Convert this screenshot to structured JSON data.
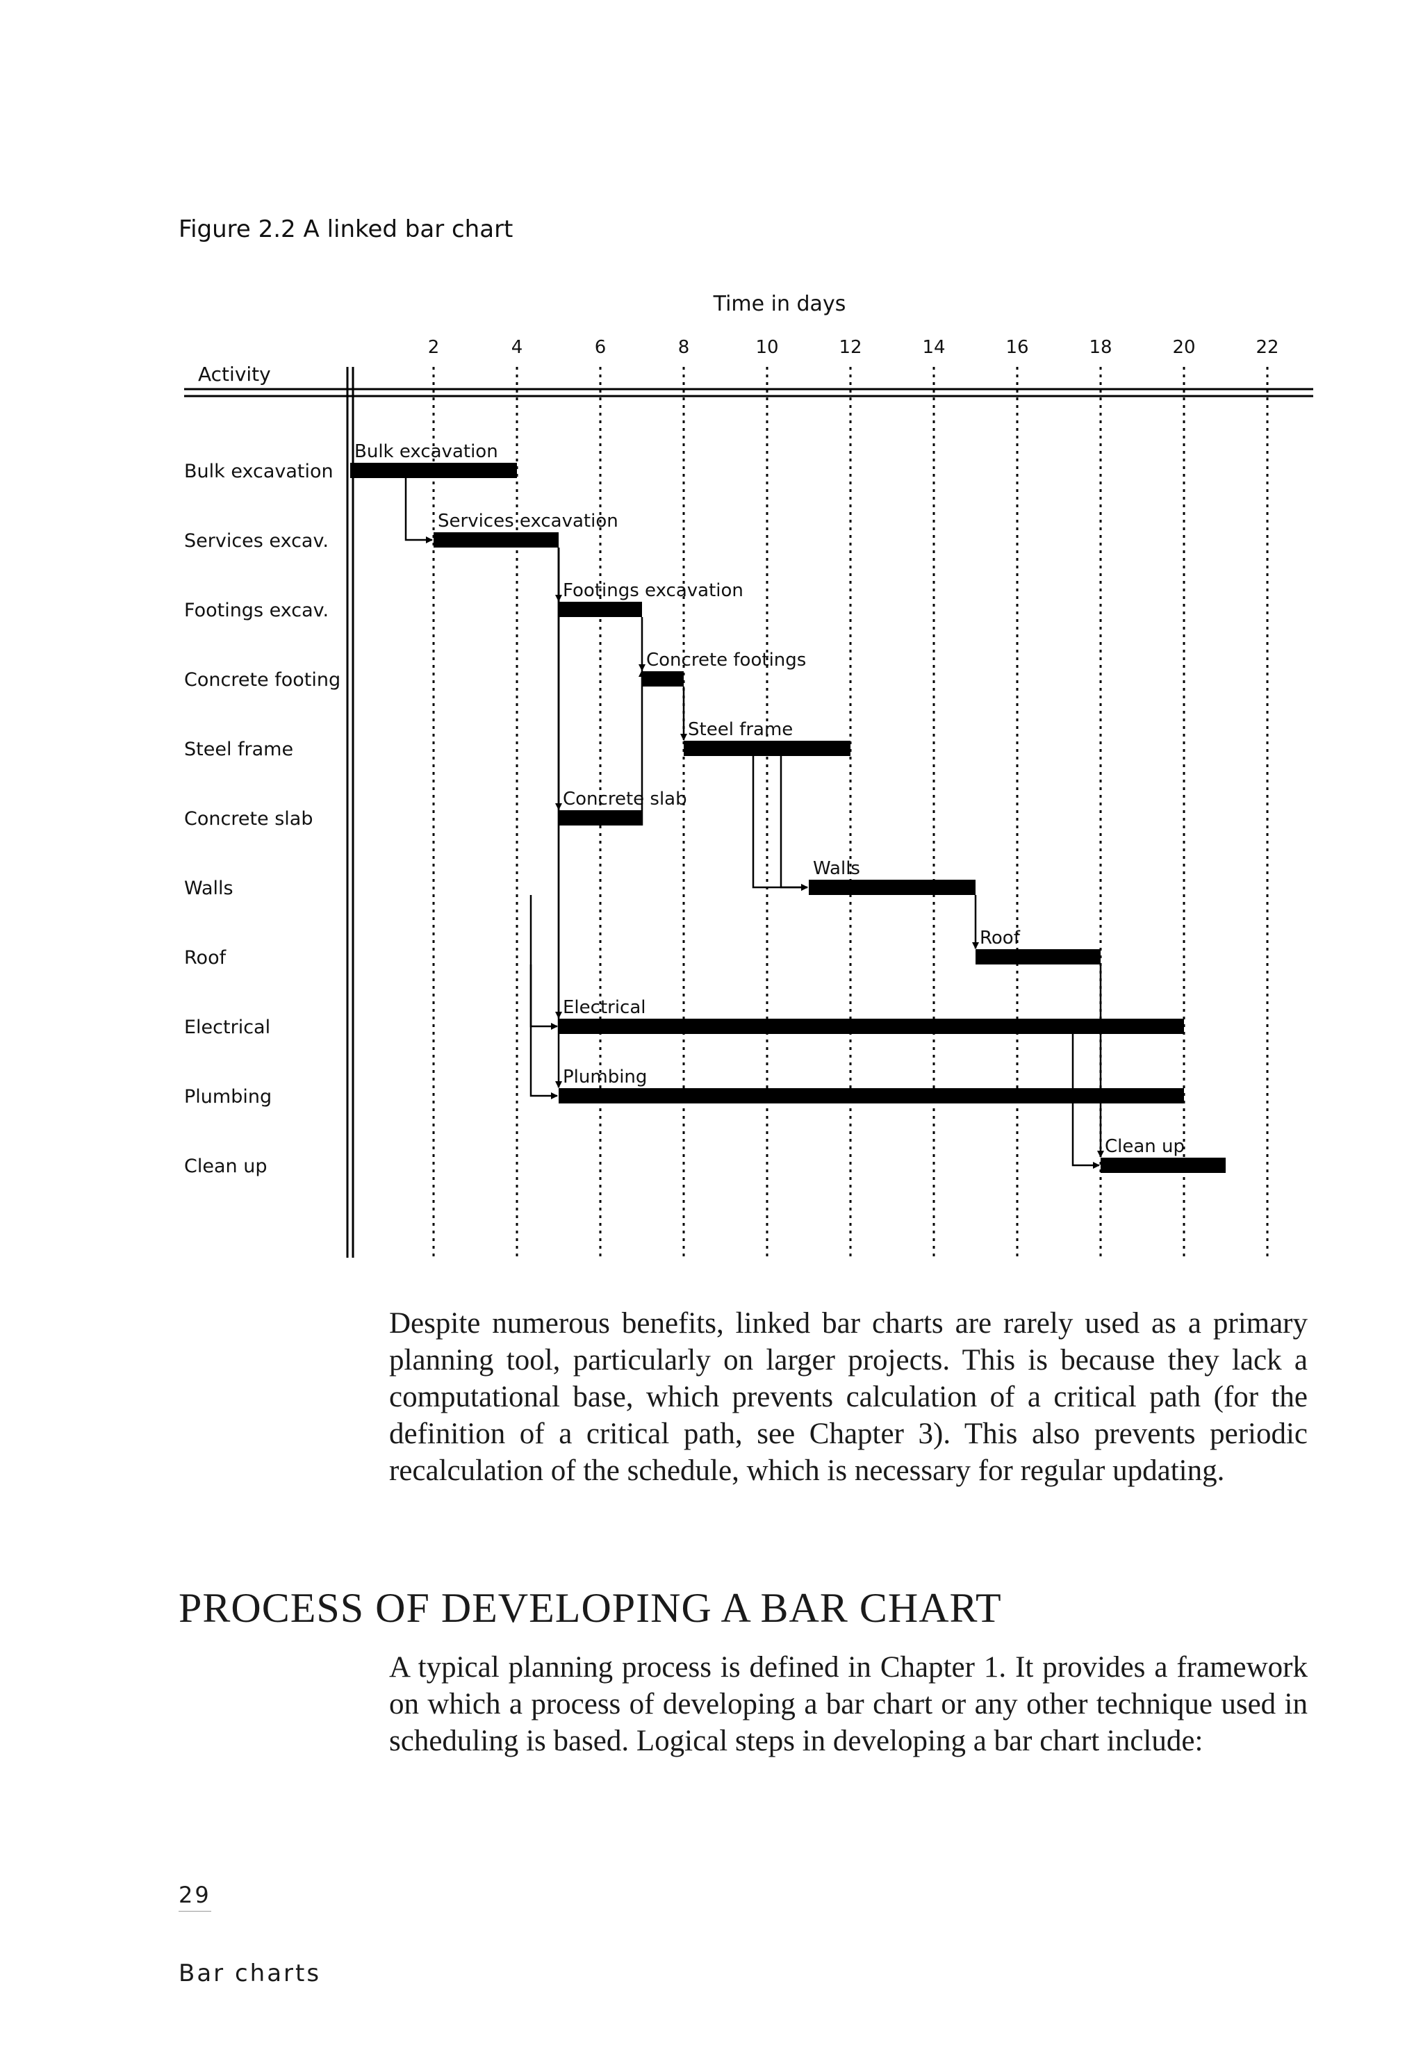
{
  "figure": {
    "caption": "Figure 2.2  A linked bar chart",
    "chart_data": {
      "type": "bar",
      "subtype": "linked-gantt",
      "xlabel": "Time in days",
      "row_header": "Activity",
      "x_ticks": [
        2,
        4,
        6,
        8,
        10,
        12,
        14,
        16,
        18,
        20,
        22
      ],
      "xlim": [
        0,
        23
      ],
      "grid": "dotted vertical lines at each tick",
      "tasks": [
        {
          "name": "Bulk excavation",
          "bar_label": "Bulk excavation",
          "start": 0,
          "end": 4
        },
        {
          "name": "Services excav.",
          "bar_label": "Services excavation",
          "start": 2,
          "end": 5
        },
        {
          "name": "Footings excav.",
          "bar_label": "Footings excavation",
          "start": 5,
          "end": 7
        },
        {
          "name": "Concrete footing",
          "bar_label": "Concrete footings",
          "start": 7,
          "end": 8
        },
        {
          "name": "Steel frame",
          "bar_label": "Steel frame",
          "start": 8,
          "end": 12
        },
        {
          "name": "Concrete slab",
          "bar_label": "Concrete slab",
          "start": 5,
          "end": 7
        },
        {
          "name": "Walls",
          "bar_label": "Walls",
          "start": 11,
          "end": 15
        },
        {
          "name": "Roof",
          "bar_label": "Roof",
          "start": 15,
          "end": 18
        },
        {
          "name": "Electrical",
          "bar_label": "Electrical",
          "start": 5,
          "end": 20
        },
        {
          "name": "Plumbing",
          "bar_label": "Plumbing",
          "start": 5,
          "end": 20
        },
        {
          "name": "Clean up",
          "bar_label": "Clean up",
          "start": 18,
          "end": 21
        }
      ],
      "links": [
        {
          "from": 0,
          "to": 1
        },
        {
          "from": 1,
          "to": 2
        },
        {
          "from": 1,
          "to": 5
        },
        {
          "from": 1,
          "to": 8
        },
        {
          "from": 1,
          "to": 9
        },
        {
          "from": 2,
          "to": 3
        },
        {
          "from": 5,
          "to": 3
        },
        {
          "from": 3,
          "to": 4
        },
        {
          "from": 4,
          "to": 6
        },
        {
          "from": 4,
          "to": 6
        },
        {
          "from": 6,
          "to": 7
        },
        {
          "from": 6,
          "to": 9
        },
        {
          "from": 7,
          "to": 8
        },
        {
          "from": 7,
          "to": 10
        },
        {
          "from": 8,
          "to": 10
        }
      ]
    }
  },
  "paragraph1": "Despite numerous benefits, linked bar charts are rarely used as a primary planning tool, particularly on larger projects. This is because they lack a computational base, which prevents calculation of a critical path (for the definition of a critical path, see Chapter 3). This also prevents periodic recalculation of the schedule, which is necessary for regular updating.",
  "section_heading": "PROCESS OF DEVELOPING A BAR CHART",
  "paragraph2": "A typical planning process is defined in Chapter 1. It provides a framework on which a process of developing a bar chart or any other technique used in scheduling is based. Logical steps in developing a bar chart include:",
  "footer": {
    "page_number": "29",
    "running_title": "Bar charts"
  }
}
